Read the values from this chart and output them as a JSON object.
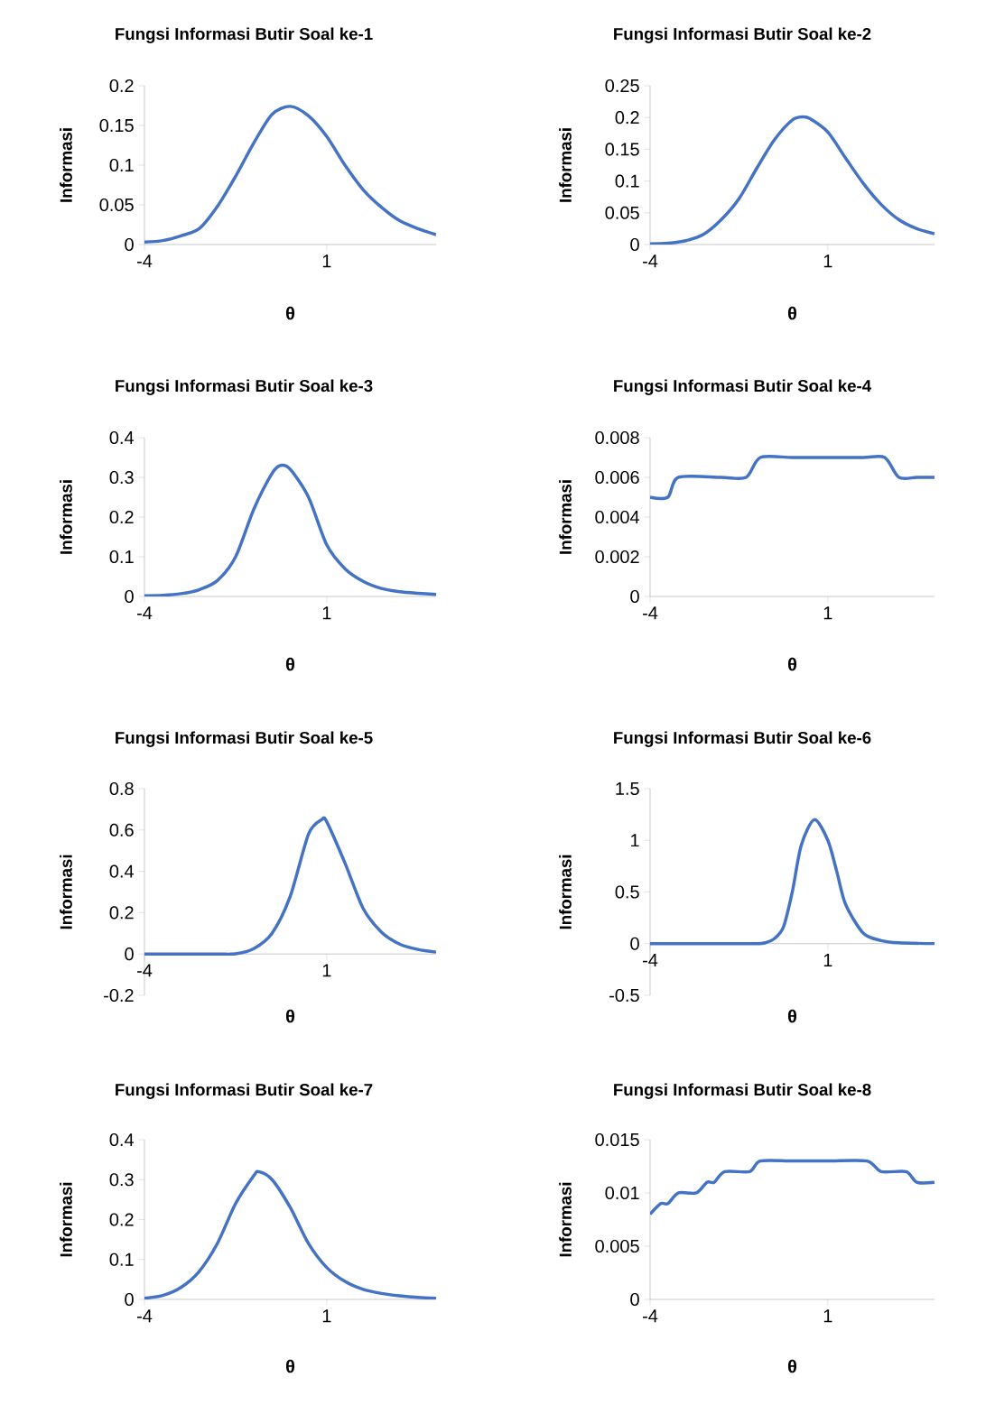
{
  "chart_data": [
    {
      "type": "line",
      "title": "Fungsi Informasi Butir Soal ke-1",
      "xlabel": "θ",
      "ylabel": "Informasi",
      "color": "#4472c4",
      "xlim": [
        -4,
        4
      ],
      "xticks": [
        -4,
        1
      ],
      "ylim": [
        0,
        0.2
      ],
      "yticks": [
        0,
        0.05,
        0.1,
        0.15,
        0.2
      ],
      "x": [
        -4,
        -3.5,
        -3,
        -2.5,
        -2,
        -1.5,
        -1,
        -0.5,
        0,
        0.5,
        1,
        1.5,
        2,
        2.5,
        3,
        3.5,
        4
      ],
      "values": [
        0.003,
        0.005,
        0.011,
        0.02,
        0.048,
        0.086,
        0.128,
        0.164,
        0.174,
        0.162,
        0.136,
        0.1,
        0.069,
        0.047,
        0.03,
        0.02,
        0.0125
      ]
    },
    {
      "type": "line",
      "title": "Fungsi Informasi Butir Soal ke-2",
      "xlabel": "θ",
      "ylabel": "Informasi",
      "color": "#4472c4",
      "xlim": [
        -4,
        4
      ],
      "xticks": [
        -4,
        1
      ],
      "ylim": [
        0,
        0.25
      ],
      "yticks": [
        0,
        0.05,
        0.1,
        0.15,
        0.2,
        0.25
      ],
      "x": [
        -4,
        -3.5,
        -3,
        -2.5,
        -2,
        -1.5,
        -1,
        -0.5,
        0,
        0.3,
        0.5,
        1,
        1.5,
        2,
        2.5,
        3,
        3.5,
        4
      ],
      "values": [
        0.001,
        0.002,
        0.006,
        0.016,
        0.039,
        0.072,
        0.12,
        0.165,
        0.196,
        0.201,
        0.198,
        0.177,
        0.136,
        0.096,
        0.063,
        0.039,
        0.025,
        0.017
      ]
    },
    {
      "type": "line",
      "title": "Fungsi Informasi Butir Soal ke-3",
      "xlabel": "θ",
      "ylabel": "Informasi",
      "color": "#4472c4",
      "xlim": [
        -4,
        4
      ],
      "xticks": [
        -4,
        1
      ],
      "ylim": [
        0,
        0.4
      ],
      "yticks": [
        0,
        0.1,
        0.2,
        0.3,
        0.4
      ],
      "x": [
        -4,
        -3.5,
        -3,
        -2.5,
        -2,
        -1.5,
        -1,
        -0.5,
        -0.26,
        0,
        0.5,
        1,
        1.5,
        2,
        2.5,
        3,
        3.5,
        4
      ],
      "values": [
        0.002,
        0.003,
        0.007,
        0.017,
        0.04,
        0.1,
        0.22,
        0.31,
        0.33,
        0.32,
        0.25,
        0.13,
        0.07,
        0.038,
        0.02,
        0.012,
        0.008,
        0.005
      ]
    },
    {
      "type": "line",
      "title": "Fungsi Informasi Butir Soal ke-4",
      "xlabel": "θ",
      "ylabel": "Informasi",
      "color": "#4472c4",
      "xlim": [
        -4,
        4
      ],
      "xticks": [
        -4,
        1
      ],
      "ylim": [
        0,
        0.008
      ],
      "yticks": [
        0,
        0.002,
        0.004,
        0.006,
        0.008
      ],
      "x": [
        -4,
        -3.5,
        -3.2,
        -2,
        -1.3,
        -0.9,
        0,
        1,
        2,
        2.6,
        3,
        3.5,
        4
      ],
      "values": [
        0.005,
        0.005,
        0.006,
        0.006,
        0.006,
        0.007,
        0.007,
        0.007,
        0.007,
        0.007,
        0.006,
        0.006,
        0.006
      ]
    },
    {
      "type": "line",
      "title": "Fungsi Informasi Butir Soal ke-5",
      "xlabel": "θ",
      "ylabel": "Informasi",
      "color": "#4472c4",
      "xlim": [
        -4,
        4
      ],
      "xticks": [
        -4,
        1
      ],
      "ylim": [
        -0.2,
        0.8
      ],
      "yticks": [
        -0.2,
        0,
        0.2,
        0.4,
        0.6,
        0.8
      ],
      "x": [
        -4,
        -3,
        -2,
        -1.5,
        -1,
        -0.5,
        0,
        0.5,
        0.86,
        1,
        1.5,
        2,
        2.5,
        3,
        3.5,
        4
      ],
      "values": [
        0,
        0,
        0,
        0.001,
        0.026,
        0.1,
        0.28,
        0.58,
        0.65,
        0.64,
        0.44,
        0.22,
        0.106,
        0.048,
        0.022,
        0.009
      ]
    },
    {
      "type": "line",
      "title": "Fungsi Informasi Butir Soal ke-6",
      "xlabel": "θ",
      "ylabel": "Informasi",
      "color": "#4472c4",
      "xlim": [
        -4,
        4
      ],
      "xticks": [
        -4,
        1
      ],
      "ylim": [
        -0.5,
        1.5
      ],
      "yticks": [
        -0.5,
        0,
        0.5,
        1,
        1.5
      ],
      "x": [
        -4,
        -3,
        -2,
        -1,
        -0.75,
        -0.5,
        -0.25,
        0,
        0.25,
        0.62,
        1,
        1.25,
        1.5,
        2,
        2.5,
        3,
        4
      ],
      "values": [
        0,
        0,
        0,
        0,
        0.01,
        0.05,
        0.16,
        0.5,
        0.95,
        1.2,
        1.0,
        0.7,
        0.38,
        0.1,
        0.03,
        0.008,
        0.001
      ]
    },
    {
      "type": "line",
      "title": "Fungsi Informasi Butir Soal ke-7",
      "xlabel": "θ",
      "ylabel": "Informasi",
      "color": "#4472c4",
      "xlim": [
        -4,
        4
      ],
      "xticks": [
        -4,
        1
      ],
      "ylim": [
        0,
        0.4
      ],
      "yticks": [
        0,
        0.1,
        0.2,
        0.3,
        0.4
      ],
      "x": [
        -4,
        -3.5,
        -3,
        -2.5,
        -2,
        -1.5,
        -1,
        -0.87,
        -0.5,
        0,
        0.5,
        1,
        1.5,
        2,
        2.5,
        3,
        3.5,
        4
      ],
      "values": [
        0.003,
        0.01,
        0.03,
        0.07,
        0.14,
        0.24,
        0.31,
        0.32,
        0.3,
        0.23,
        0.14,
        0.08,
        0.045,
        0.025,
        0.015,
        0.009,
        0.005,
        0.003
      ]
    },
    {
      "type": "line",
      "title": "Fungsi Informasi Butir Soal ke-8",
      "xlabel": "θ",
      "ylabel": "Informasi",
      "color": "#4472c4",
      "xlim": [
        -4,
        4
      ],
      "xticks": [
        -4,
        1
      ],
      "ylim": [
        0,
        0.015
      ],
      "yticks": [
        0,
        0.005,
        0.01,
        0.015
      ],
      "x": [
        -4,
        -3.7,
        -3.5,
        -3.2,
        -2.7,
        -2.4,
        -2.2,
        -1.9,
        -1.2,
        -0.9,
        0,
        1,
        2.1,
        2.5,
        3.2,
        3.5,
        4
      ],
      "values": [
        0.008,
        0.009,
        0.009,
        0.01,
        0.01,
        0.011,
        0.011,
        0.012,
        0.012,
        0.013,
        0.013,
        0.013,
        0.013,
        0.012,
        0.012,
        0.011,
        0.011
      ]
    }
  ]
}
